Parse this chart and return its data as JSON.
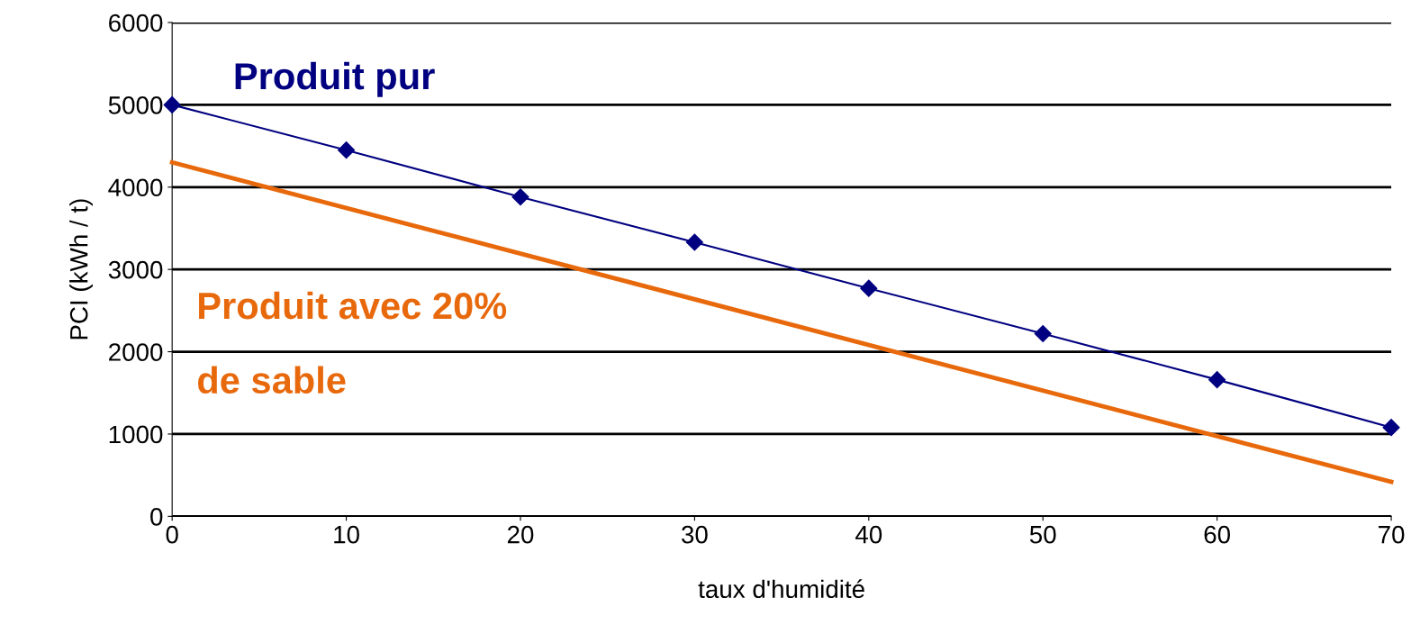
{
  "chart_data": {
    "type": "line",
    "xlabel": "taux d'humidité",
    "ylabel": "PCI (kWh / t)",
    "xlim": [
      0,
      70
    ],
    "xticks": [
      0,
      10,
      20,
      30,
      40,
      50,
      60,
      70
    ],
    "ylim": [
      0,
      6000
    ],
    "yticks": [
      0,
      1000,
      2000,
      3000,
      4000,
      5000,
      6000
    ],
    "grid": "y",
    "legend": false,
    "series": [
      {
        "name": "Produit pur",
        "color": "#000080",
        "marker": "diamond",
        "x": [
          0,
          10,
          20,
          30,
          40,
          50,
          60,
          70
        ],
        "values": [
          5000,
          4450,
          3880,
          3330,
          2770,
          2220,
          1660,
          1080
        ]
      },
      {
        "name": "Produit avec 20%\nde sable",
        "color": "#e8690c",
        "marker": "none",
        "x": [
          0,
          70
        ],
        "values": [
          4300,
          420
        ]
      }
    ]
  }
}
